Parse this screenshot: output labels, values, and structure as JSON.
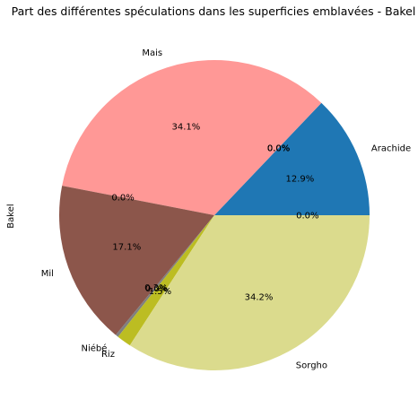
{
  "chart_data": {
    "type": "pie",
    "title": "Part des différentes spéculations dans les superficies emblavées - Bakel",
    "ylabel": "Bakel",
    "start_angle_deg": 0,
    "direction": "counterclockwise",
    "slices": [
      {
        "label": "Arachide",
        "value": 12.9,
        "pct_label": "12.9%",
        "color": "#1f77b4"
      },
      {
        "label": "",
        "value": 0.0,
        "pct_label": "0.0%",
        "color": "#ff7f0e"
      },
      {
        "label": "",
        "value": 0.0,
        "pct_label": "0.0%",
        "color": "#2ca02c"
      },
      {
        "label": "",
        "value": 0.0,
        "pct_label": "0.0%",
        "color": "#d62728"
      },
      {
        "label": "Mais",
        "value": 34.1,
        "pct_label": "34.1%",
        "color": "#ff9896"
      },
      {
        "label": "",
        "value": 0.0,
        "pct_label": "0.0%",
        "color": "#9467bd"
      },
      {
        "label": "Mil",
        "value": 17.1,
        "pct_label": "17.1%",
        "color": "#8c564b"
      },
      {
        "label": "Niébé",
        "value": 0.3,
        "pct_label": "0.3%",
        "color": "#7f7f7f"
      },
      {
        "label": "",
        "value": 0.0,
        "pct_label": "0.0%",
        "color": "#e377c2"
      },
      {
        "label": "Riz",
        "value": 1.5,
        "pct_label": "1.5%",
        "color": "#bcbd22"
      },
      {
        "label": "Sorgho",
        "value": 34.2,
        "pct_label": "34.2%",
        "color": "#dbdb8d"
      },
      {
        "label": "",
        "value": 0.0,
        "pct_label": "0.0%",
        "color": "#17becf"
      }
    ]
  }
}
